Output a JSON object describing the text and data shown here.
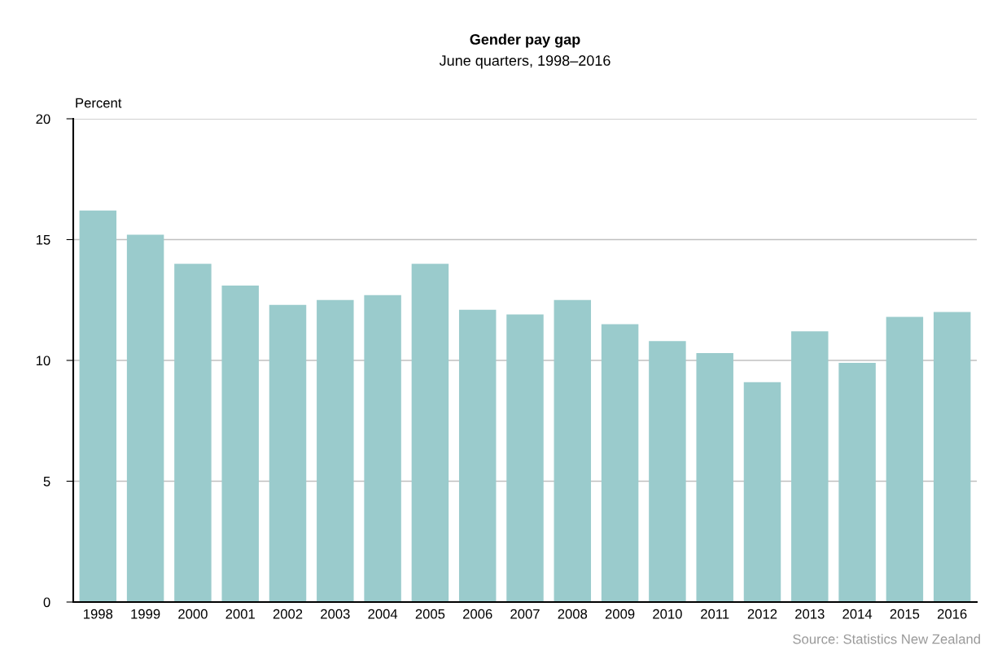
{
  "chart_data": {
    "type": "bar",
    "title": "Gender pay gap",
    "subtitle": "June quarters, 1998–2016",
    "ylabel": "Percent",
    "categories": [
      "1998",
      "1999",
      "2000",
      "2001",
      "2002",
      "2003",
      "2004",
      "2005",
      "2006",
      "2007",
      "2008",
      "2009",
      "2010",
      "2011",
      "2012",
      "2013",
      "2014",
      "2015",
      "2016"
    ],
    "values": [
      16.2,
      15.2,
      14.0,
      13.1,
      12.3,
      12.5,
      12.7,
      14.0,
      12.1,
      11.9,
      12.5,
      11.5,
      10.8,
      10.3,
      9.1,
      11.2,
      9.9,
      11.8,
      12.0
    ],
    "color": "#9acbcc",
    "ylim": [
      0,
      20
    ],
    "yticks": [
      0,
      5,
      10,
      15,
      20
    ],
    "grid": "y",
    "annotations": [
      "Source: Statistics New Zealand"
    ]
  }
}
